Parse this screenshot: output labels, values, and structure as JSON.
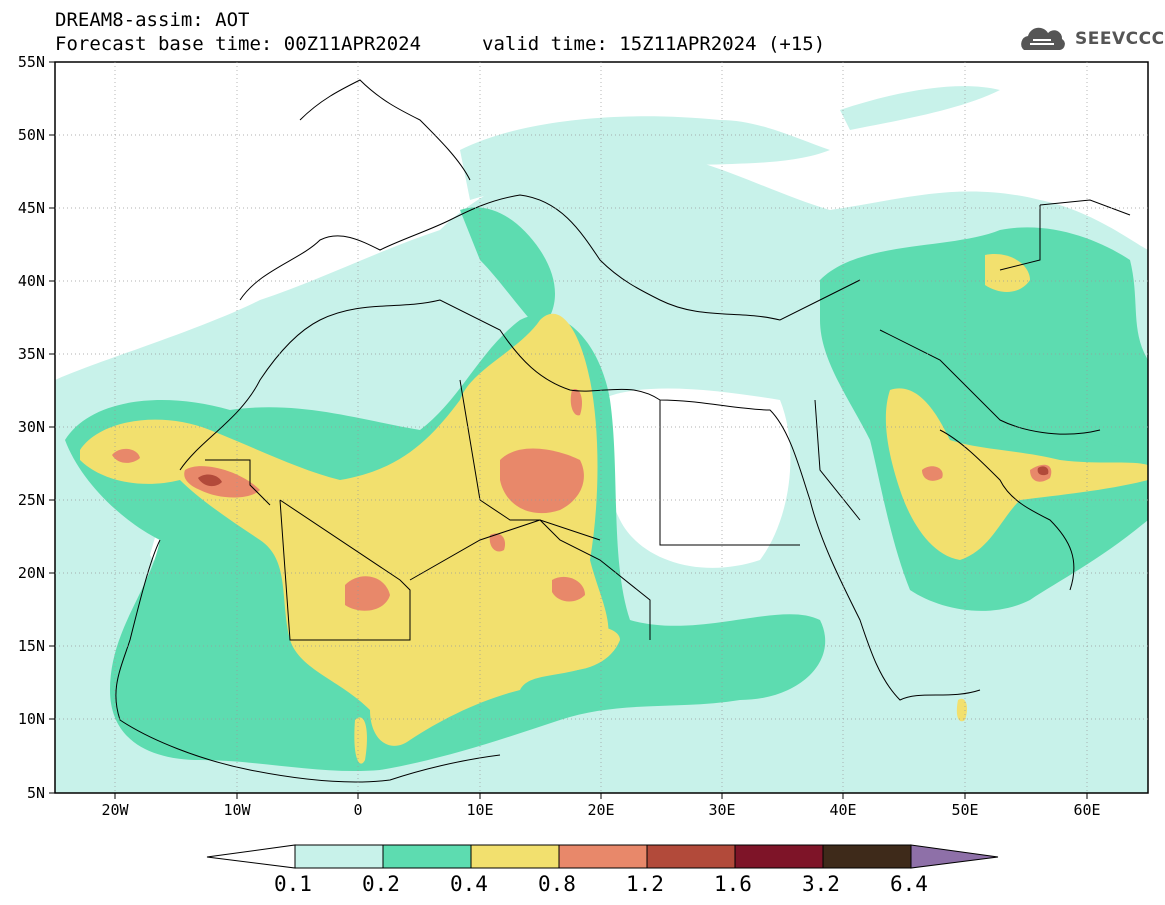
{
  "header": {
    "title": "DREAM8-assim: AOT",
    "base_time": "Forecast base time: 00Z11APR2024",
    "valid_time": "valid time: 15Z11APR2024 (+15)"
  },
  "logo": {
    "text": "SEEVCCC",
    "icon": "cloud-icon"
  },
  "map": {
    "lat_labels": [
      "55N",
      "50N",
      "45N",
      "40N",
      "35N",
      "30N",
      "25N",
      "20N",
      "15N",
      "10N",
      "5N"
    ],
    "lon_labels": [
      "20W",
      "10W",
      "0",
      "10E",
      "20E",
      "30E",
      "40E",
      "50E",
      "60E"
    ]
  },
  "colorbar": {
    "labels": [
      "0.1",
      "0.2",
      "0.4",
      "0.8",
      "1.2",
      "1.6",
      "3.2",
      "6.4"
    ],
    "colors": [
      "#c8f2ea",
      "#5ddcb0",
      "#f2e06e",
      "#e8886a",
      "#b24a3a",
      "#7e1428",
      "#3e2a1a",
      "#8e70a8"
    ]
  }
}
